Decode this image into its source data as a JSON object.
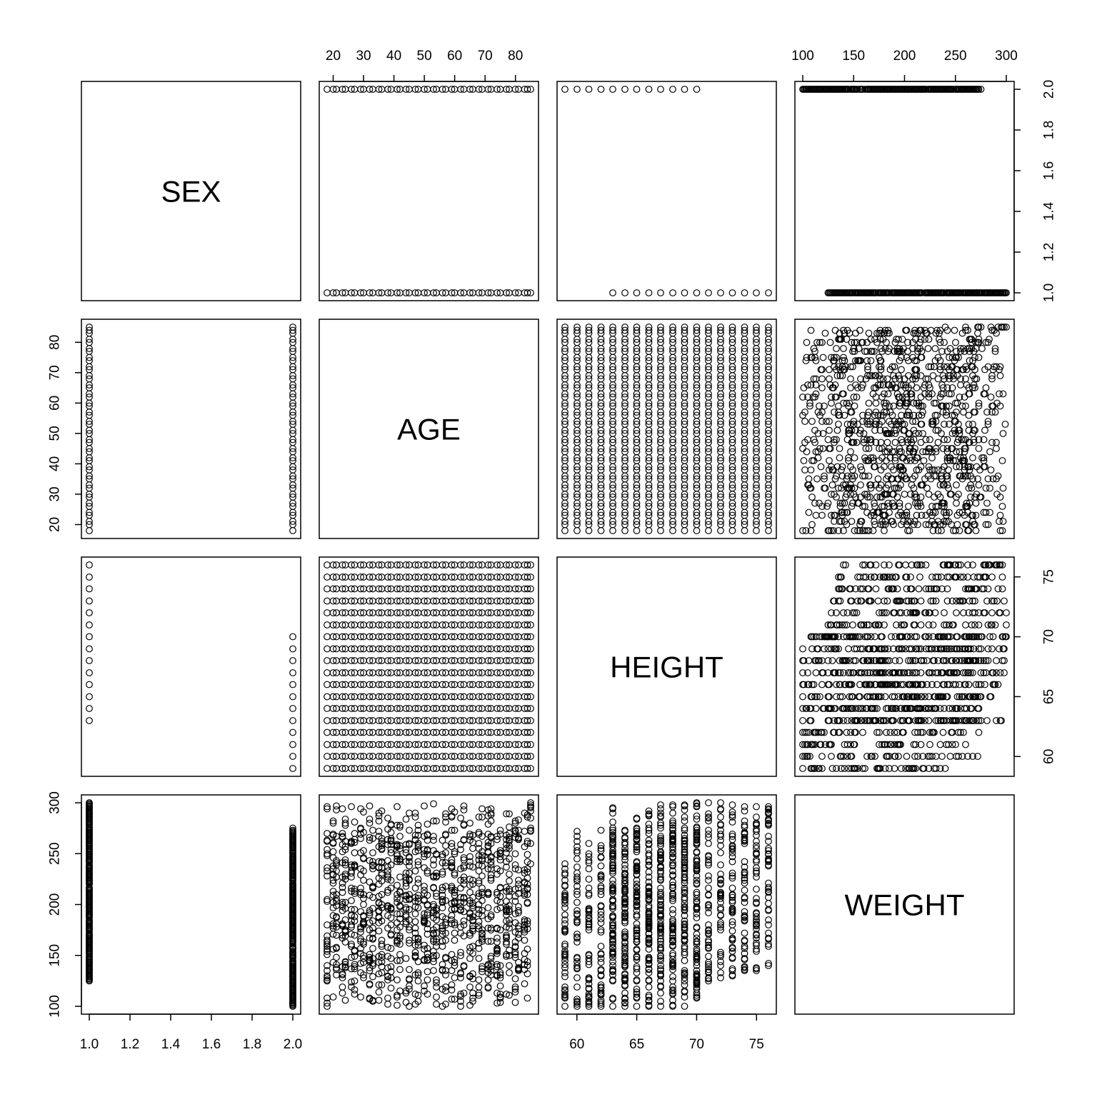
{
  "chart_data": {
    "type": "scatter",
    "layout": "scatterplot-matrix",
    "variables": [
      "SEX",
      "AGE",
      "HEIGHT",
      "WEIGHT"
    ],
    "ranges": {
      "SEX": [
        1,
        2
      ],
      "AGE": [
        18,
        85
      ],
      "HEIGHT": [
        59,
        76
      ],
      "WEIGHT": [
        100,
        300
      ]
    },
    "ticks": {
      "SEX": [
        1.0,
        1.2,
        1.4,
        1.6,
        1.8,
        2.0
      ],
      "AGE": [
        20,
        30,
        40,
        50,
        60,
        70,
        80
      ],
      "HEIGHT": [
        60,
        65,
        70,
        75
      ],
      "WEIGHT": [
        100,
        150,
        200,
        250,
        300
      ]
    },
    "tick_labels": {
      "SEX": [
        "1.0",
        "1.2",
        "1.4",
        "1.6",
        "1.8",
        "2.0"
      ],
      "AGE": [
        "20",
        "30",
        "40",
        "50",
        "60",
        "70",
        "80"
      ],
      "HEIGHT": [
        "60",
        "65",
        "70",
        "75"
      ],
      "WEIGHT": [
        "100",
        "150",
        "200",
        "250",
        "300"
      ]
    },
    "groups": [
      {
        "SEX": 1,
        "HEIGHT": [
          63,
          76
        ],
        "WEIGHT": [
          125,
          300
        ],
        "AGE": [
          18,
          85
        ]
      },
      {
        "SEX": 2,
        "HEIGHT": [
          59,
          70
        ],
        "WEIGHT": [
          100,
          275
        ],
        "AGE": [
          18,
          85
        ]
      }
    ],
    "height_weight_ranges": [
      {
        "HEIGHT": 59,
        "WEIGHT": [
          100,
          240
        ]
      },
      {
        "HEIGHT": 60,
        "WEIGHT": [
          100,
          272
        ]
      },
      {
        "HEIGHT": 61,
        "WEIGHT": [
          100,
          260
        ]
      },
      {
        "HEIGHT": 62,
        "WEIGHT": [
          100,
          273
        ]
      },
      {
        "HEIGHT": 63,
        "WEIGHT": [
          100,
          295
        ]
      },
      {
        "HEIGHT": 64,
        "WEIGHT": [
          100,
          273
        ]
      },
      {
        "HEIGHT": 65,
        "WEIGHT": [
          100,
          285
        ]
      },
      {
        "HEIGHT": 66,
        "WEIGHT": [
          100,
          292
        ]
      },
      {
        "HEIGHT": 67,
        "WEIGHT": [
          100,
          298
        ]
      },
      {
        "HEIGHT": 68,
        "WEIGHT": [
          100,
          298
        ]
      },
      {
        "HEIGHT": 69,
        "WEIGHT": [
          100,
          298
        ]
      },
      {
        "HEIGHT": 70,
        "WEIGHT": [
          108,
          300
        ]
      },
      {
        "HEIGHT": 71,
        "WEIGHT": [
          125,
          300
        ]
      },
      {
        "HEIGHT": 72,
        "WEIGHT": [
          128,
          300
        ]
      },
      {
        "HEIGHT": 73,
        "WEIGHT": [
          130,
          298
        ]
      },
      {
        "HEIGHT": 74,
        "WEIGHT": [
          135,
          296
        ]
      },
      {
        "HEIGHT": 75,
        "WEIGHT": [
          135,
          296
        ]
      },
      {
        "HEIGHT": 76,
        "WEIGHT": [
          140,
          296
        ]
      }
    ],
    "title": "",
    "grid": false,
    "legend": "none"
  }
}
